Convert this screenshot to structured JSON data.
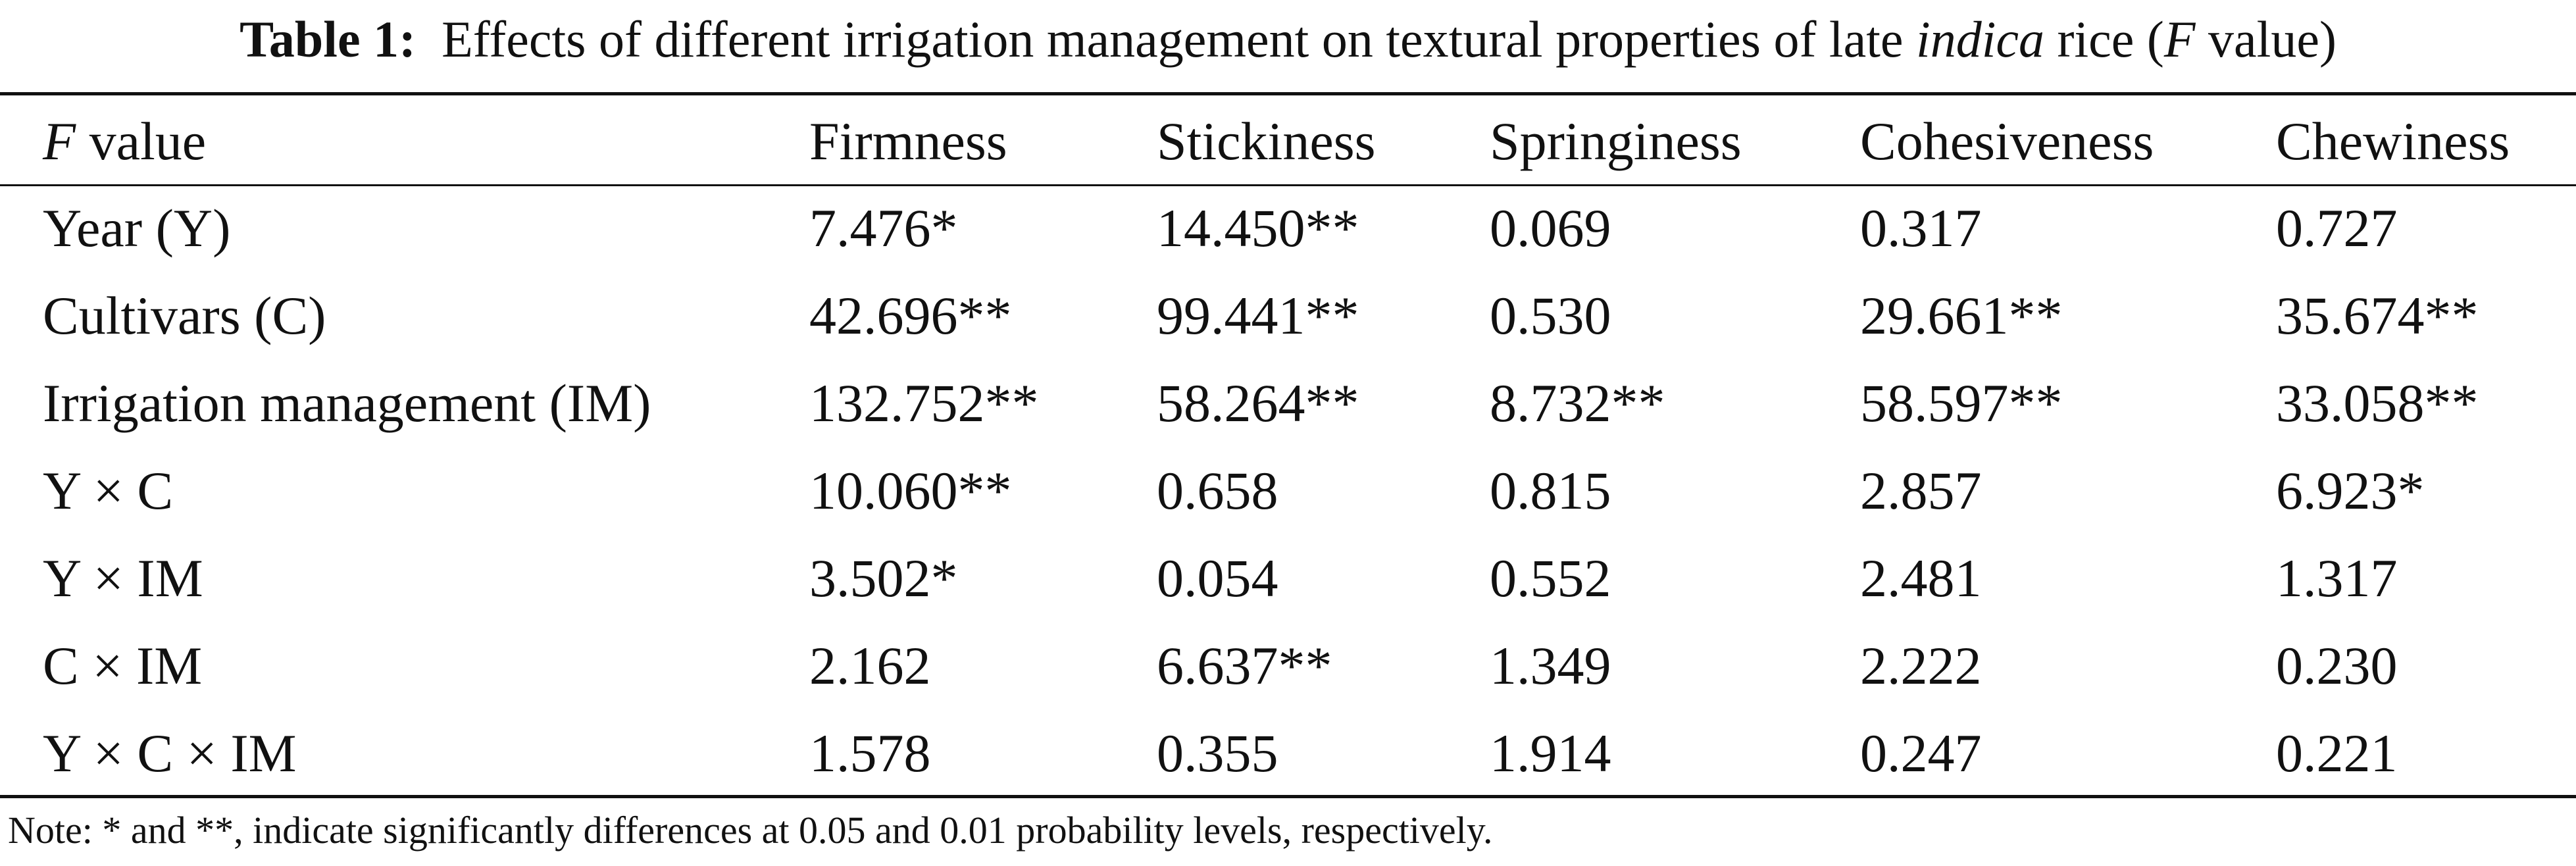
{
  "caption": {
    "label": "Table 1:",
    "text_before_italic": "Effects of different irrigation management on textural properties of late",
    "italic_word": "indica",
    "text_middle": "rice (",
    "italic_f": "F",
    "text_after": "value)"
  },
  "table": {
    "header": {
      "first_italic": "F",
      "first_rest": "value",
      "columns": [
        "Firmness",
        "Stickiness",
        "Springiness",
        "Cohesiveness",
        "Chewiness"
      ]
    },
    "rows": [
      {
        "label": "Year (Y)",
        "values": [
          "7.476*",
          "14.450**",
          "0.069",
          "0.317",
          "0.727"
        ]
      },
      {
        "label": "Cultivars (C)",
        "values": [
          "42.696**",
          "99.441**",
          "0.530",
          "29.661**",
          "35.674**"
        ]
      },
      {
        "label": "Irrigation management (IM)",
        "values": [
          "132.752**",
          "58.264**",
          "8.732**",
          "58.597**",
          "33.058**"
        ]
      },
      {
        "label": "Y × C",
        "values": [
          "10.060**",
          "0.658",
          "0.815",
          "2.857",
          "6.923*"
        ]
      },
      {
        "label": "Y × IM",
        "values": [
          "3.502*",
          "0.054",
          "0.552",
          "2.481",
          "1.317"
        ]
      },
      {
        "label": "C × IM",
        "values": [
          "2.162",
          "6.637**",
          "1.349",
          "2.222",
          "0.230"
        ]
      },
      {
        "label": "Y × C × IM",
        "values": [
          "1.578",
          "0.355",
          "1.914",
          "0.247",
          "0.221"
        ]
      }
    ]
  },
  "note": "Note: * and **, indicate significantly differences at 0.05 and 0.01 probability levels, respectively."
}
